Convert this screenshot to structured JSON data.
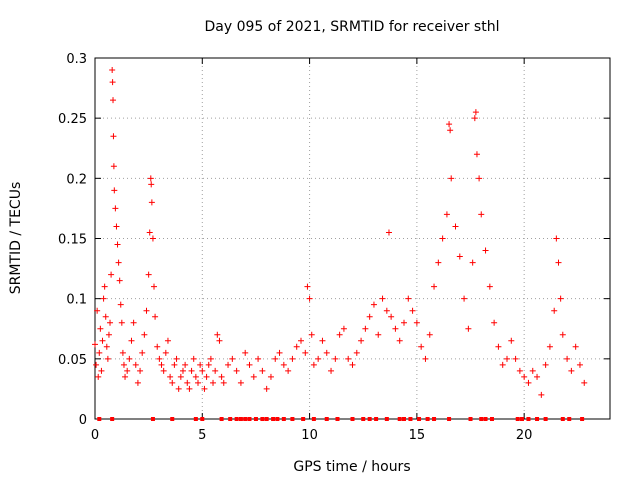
{
  "chart_data": {
    "type": "scatter",
    "title": "Day 095 of 2021, SRMTID for receiver sthl",
    "xlabel": "GPS time / hours",
    "ylabel": "SRMTID / TECUs",
    "xlim": [
      0,
      24
    ],
    "ylim": [
      0,
      0.3
    ],
    "grid": true,
    "marker": "plus",
    "colors": {
      "series": "#ff0000",
      "grid": "#a0a0a0",
      "axis": "#000000",
      "background": "#ffffff"
    },
    "x_ticks": [
      {
        "value": 0,
        "label": "0"
      },
      {
        "value": 5,
        "label": "5"
      },
      {
        "value": 10,
        "label": "10"
      },
      {
        "value": 15,
        "label": "15"
      },
      {
        "value": 20,
        "label": "20"
      }
    ],
    "y_ticks": [
      {
        "value": 0,
        "label": "0"
      },
      {
        "value": 0.05,
        "label": "0.05"
      },
      {
        "value": 0.1,
        "label": "0.1"
      },
      {
        "value": 0.15,
        "label": "0.15"
      },
      {
        "value": 0.2,
        "label": "0.2"
      },
      {
        "value": 0.25,
        "label": "0.25"
      },
      {
        "value": 0.3,
        "label": "0.3"
      }
    ],
    "series": [
      {
        "name": "SRMTID",
        "points": [
          [
            0.0,
            0.062
          ],
          [
            0.05,
            0.045
          ],
          [
            0.1,
            0.09
          ],
          [
            0.15,
            0.035
          ],
          [
            0.2,
            0.055
          ],
          [
            0.25,
            0.075
          ],
          [
            0.3,
            0.04
          ],
          [
            0.35,
            0.065
          ],
          [
            0.4,
            0.1
          ],
          [
            0.45,
            0.11
          ],
          [
            0.5,
            0.085
          ],
          [
            0.55,
            0.06
          ],
          [
            0.6,
            0.05
          ],
          [
            0.65,
            0.07
          ],
          [
            0.7,
            0.08
          ],
          [
            0.75,
            0.12
          ],
          [
            0.8,
            0.29
          ],
          [
            0.82,
            0.28
          ],
          [
            0.84,
            0.265
          ],
          [
            0.86,
            0.235
          ],
          [
            0.88,
            0.21
          ],
          [
            0.9,
            0.19
          ],
          [
            0.95,
            0.175
          ],
          [
            1.0,
            0.16
          ],
          [
            1.05,
            0.145
          ],
          [
            1.1,
            0.13
          ],
          [
            1.15,
            0.115
          ],
          [
            1.2,
            0.095
          ],
          [
            1.25,
            0.08
          ],
          [
            1.3,
            0.055
          ],
          [
            1.35,
            0.045
          ],
          [
            1.4,
            0.035
          ],
          [
            1.5,
            0.04
          ],
          [
            1.6,
            0.05
          ],
          [
            1.7,
            0.065
          ],
          [
            1.8,
            0.08
          ],
          [
            1.9,
            0.045
          ],
          [
            2.0,
            0.03
          ],
          [
            2.1,
            0.04
          ],
          [
            2.2,
            0.055
          ],
          [
            2.3,
            0.07
          ],
          [
            2.4,
            0.09
          ],
          [
            2.5,
            0.12
          ],
          [
            2.55,
            0.155
          ],
          [
            2.6,
            0.2
          ],
          [
            2.62,
            0.195
          ],
          [
            2.65,
            0.18
          ],
          [
            2.7,
            0.15
          ],
          [
            2.75,
            0.11
          ],
          [
            2.8,
            0.085
          ],
          [
            2.9,
            0.06
          ],
          [
            3.0,
            0.05
          ],
          [
            3.1,
            0.045
          ],
          [
            3.2,
            0.04
          ],
          [
            3.3,
            0.055
          ],
          [
            3.4,
            0.065
          ],
          [
            3.5,
            0.035
          ],
          [
            3.6,
            0.03
          ],
          [
            3.7,
            0.045
          ],
          [
            3.8,
            0.05
          ],
          [
            3.9,
            0.025
          ],
          [
            4.0,
            0.035
          ],
          [
            4.1,
            0.04
          ],
          [
            4.2,
            0.045
          ],
          [
            4.3,
            0.03
          ],
          [
            4.4,
            0.025
          ],
          [
            4.5,
            0.04
          ],
          [
            4.6,
            0.05
          ],
          [
            4.7,
            0.035
          ],
          [
            4.8,
            0.03
          ],
          [
            4.9,
            0.045
          ],
          [
            5.0,
            0.04
          ],
          [
            5.1,
            0.025
          ],
          [
            5.2,
            0.035
          ],
          [
            5.3,
            0.045
          ],
          [
            5.4,
            0.05
          ],
          [
            5.5,
            0.03
          ],
          [
            5.6,
            0.04
          ],
          [
            5.7,
            0.07
          ],
          [
            5.8,
            0.065
          ],
          [
            5.9,
            0.035
          ],
          [
            6.0,
            0.03
          ],
          [
            6.2,
            0.045
          ],
          [
            6.4,
            0.05
          ],
          [
            6.6,
            0.04
          ],
          [
            6.8,
            0.03
          ],
          [
            7.0,
            0.055
          ],
          [
            7.2,
            0.045
          ],
          [
            7.4,
            0.035
          ],
          [
            7.6,
            0.05
          ],
          [
            7.8,
            0.04
          ],
          [
            8.0,
            0.025
          ],
          [
            8.2,
            0.035
          ],
          [
            8.4,
            0.05
          ],
          [
            8.6,
            0.055
          ],
          [
            8.8,
            0.045
          ],
          [
            9.0,
            0.04
          ],
          [
            9.2,
            0.05
          ],
          [
            9.4,
            0.06
          ],
          [
            9.6,
            0.065
          ],
          [
            9.8,
            0.055
          ],
          [
            9.9,
            0.11
          ],
          [
            10.0,
            0.1
          ],
          [
            10.1,
            0.07
          ],
          [
            10.2,
            0.045
          ],
          [
            10.4,
            0.05
          ],
          [
            10.6,
            0.065
          ],
          [
            10.8,
            0.055
          ],
          [
            11.0,
            0.04
          ],
          [
            11.2,
            0.05
          ],
          [
            11.4,
            0.07
          ],
          [
            11.6,
            0.075
          ],
          [
            11.8,
            0.05
          ],
          [
            12.0,
            0.045
          ],
          [
            12.2,
            0.055
          ],
          [
            12.4,
            0.065
          ],
          [
            12.6,
            0.075
          ],
          [
            12.8,
            0.085
          ],
          [
            13.0,
            0.095
          ],
          [
            13.2,
            0.07
          ],
          [
            13.4,
            0.1
          ],
          [
            13.6,
            0.09
          ],
          [
            13.7,
            0.155
          ],
          [
            13.8,
            0.085
          ],
          [
            14.0,
            0.075
          ],
          [
            14.2,
            0.065
          ],
          [
            14.4,
            0.08
          ],
          [
            14.6,
            0.1
          ],
          [
            14.8,
            0.09
          ],
          [
            15.0,
            0.08
          ],
          [
            15.2,
            0.06
          ],
          [
            15.4,
            0.05
          ],
          [
            15.6,
            0.07
          ],
          [
            15.8,
            0.11
          ],
          [
            16.0,
            0.13
          ],
          [
            16.2,
            0.15
          ],
          [
            16.4,
            0.17
          ],
          [
            16.5,
            0.245
          ],
          [
            16.55,
            0.24
          ],
          [
            16.6,
            0.2
          ],
          [
            16.8,
            0.16
          ],
          [
            17.0,
            0.135
          ],
          [
            17.2,
            0.1
          ],
          [
            17.4,
            0.075
          ],
          [
            17.6,
            0.13
          ],
          [
            17.7,
            0.25
          ],
          [
            17.75,
            0.255
          ],
          [
            17.8,
            0.22
          ],
          [
            17.9,
            0.2
          ],
          [
            18.0,
            0.17
          ],
          [
            18.2,
            0.14
          ],
          [
            18.4,
            0.11
          ],
          [
            18.6,
            0.08
          ],
          [
            18.8,
            0.06
          ],
          [
            19.0,
            0.045
          ],
          [
            19.2,
            0.05
          ],
          [
            19.4,
            0.065
          ],
          [
            19.6,
            0.05
          ],
          [
            19.8,
            0.04
          ],
          [
            20.0,
            0.035
          ],
          [
            20.2,
            0.03
          ],
          [
            20.4,
            0.04
          ],
          [
            20.6,
            0.035
          ],
          [
            20.8,
            0.02
          ],
          [
            21.0,
            0.045
          ],
          [
            21.2,
            0.06
          ],
          [
            21.4,
            0.09
          ],
          [
            21.5,
            0.15
          ],
          [
            21.6,
            0.13
          ],
          [
            21.7,
            0.1
          ],
          [
            21.8,
            0.07
          ],
          [
            22.0,
            0.05
          ],
          [
            22.2,
            0.04
          ],
          [
            22.4,
            0.06
          ],
          [
            22.6,
            0.045
          ],
          [
            22.8,
            0.03
          ]
        ]
      }
    ],
    "zero_markers_x": [
      0.2,
      0.8,
      2.7,
      3.6,
      4.7,
      5.0,
      5.9,
      6.3,
      6.6,
      6.8,
      7.0,
      7.2,
      7.5,
      7.8,
      8.0,
      8.3,
      8.5,
      8.8,
      9.2,
      9.7,
      10.2,
      10.8,
      11.3,
      12.0,
      12.5,
      12.8,
      13.1,
      13.6,
      14.2,
      14.4,
      14.7,
      15.1,
      15.5,
      15.8,
      16.5,
      17.5,
      18.0,
      18.2,
      18.5,
      19.7,
      19.9,
      20.2,
      20.6,
      21.0,
      21.8,
      22.1,
      22.7
    ]
  }
}
